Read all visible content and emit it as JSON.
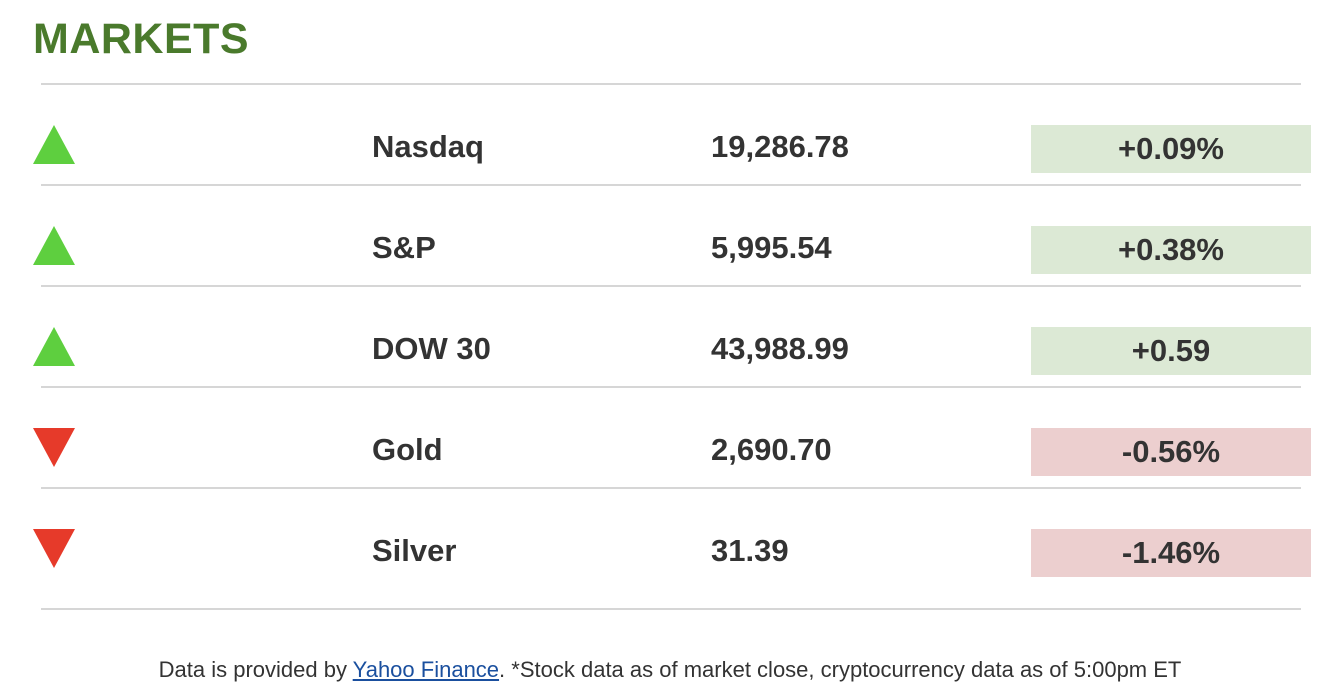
{
  "title": "MARKETS",
  "colors": {
    "title": "#4a7a2c",
    "up_arrow": "#5ecf3f",
    "down_arrow": "#e63a2a",
    "positive_bg": "#dce9d5",
    "negative_bg": "#eccfcf",
    "link": "#1a4f9e"
  },
  "markets": [
    {
      "direction": "up",
      "icon": "up-arrow-icon",
      "name": "Nasdaq",
      "value": "19,286.78",
      "change": "+0.09%"
    },
    {
      "direction": "up",
      "icon": "up-arrow-icon",
      "name": "S&P",
      "value": "5,995.54",
      "change": "+0.38%"
    },
    {
      "direction": "up",
      "icon": "up-arrow-icon",
      "name": "DOW 30",
      "value": "43,988.99",
      "change": "+0.59"
    },
    {
      "direction": "down",
      "icon": "down-arrow-icon",
      "name": "Gold",
      "value": "2,690.70",
      "change": "-0.56%"
    },
    {
      "direction": "down",
      "icon": "down-arrow-icon",
      "name": "Silver",
      "value": "31.39",
      "change": "-1.46%"
    }
  ],
  "footer": {
    "prefix": "Data is provided by ",
    "link_text": "Yahoo Finance",
    "suffix": ". *Stock data as of market close, cryptocurrency data as of 5:00pm ET"
  }
}
